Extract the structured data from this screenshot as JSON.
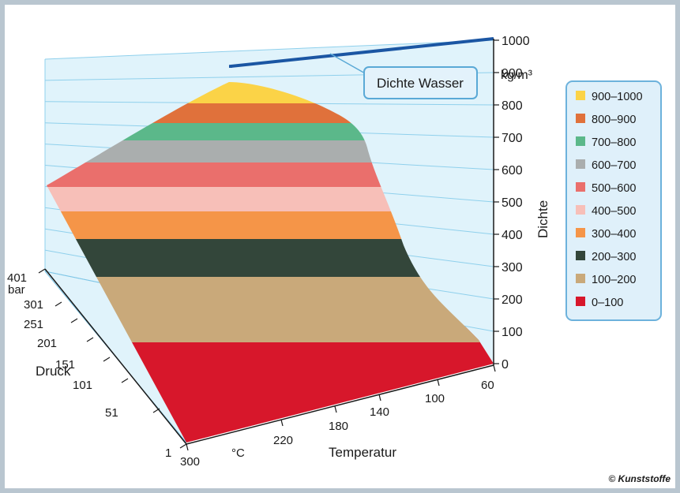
{
  "chart_data": {
    "type": "surface-3d",
    "zlabel": "Dichte",
    "zunit": "kg/m³",
    "zlim": [
      0,
      1000
    ],
    "z_ticks": [
      "0",
      "100",
      "200",
      "300",
      "400",
      "500",
      "600",
      "700",
      "800",
      "900",
      "1000"
    ],
    "xlabel": "Temperatur",
    "xunit": "°C",
    "x_ticks": [
      "300",
      "220",
      "180",
      "140",
      "100",
      "60"
    ],
    "ylabel": "Druck",
    "yunit": "bar",
    "y_ticks": [
      "401",
      "301",
      "251",
      "201",
      "151",
      "101",
      "51",
      "1"
    ],
    "bands": [
      {
        "range": "0–100",
        "color": "#d7172b"
      },
      {
        "range": "100–200",
        "color": "#c9a97a"
      },
      {
        "range": "200–300",
        "color": "#33463a"
      },
      {
        "range": "300–400",
        "color": "#f59548"
      },
      {
        "range": "400–500",
        "color": "#f7bfb8"
      },
      {
        "range": "500–600",
        "color": "#ea6f6c"
      },
      {
        "range": "600–700",
        "color": "#aaaeae"
      },
      {
        "range": "700–800",
        "color": "#5bb88a"
      },
      {
        "range": "800–900",
        "color": "#e0713b"
      },
      {
        "range": "900–1000",
        "color": "#fbd347"
      }
    ],
    "reference_line": {
      "label": "Dichte Wasser",
      "value": 1000
    },
    "legend": [
      "900–1000",
      "800–900",
      "700–800",
      "600–700",
      "500–600",
      "400–500",
      "300–400",
      "200–300",
      "100–200",
      "0–100"
    ],
    "legend_position": "right"
  },
  "copyright": "© Kunststoffe"
}
